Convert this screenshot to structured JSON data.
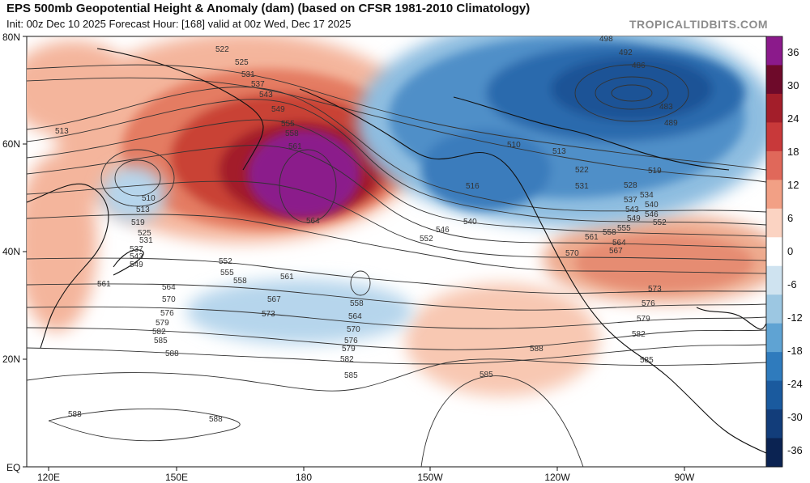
{
  "header": {
    "title": "EPS 500mb Geopotential Height & Anomaly (dam) (based on CFSR 1981-2010 Climatology)",
    "subtitle": "Init: 00z Dec 10 2025   Forecast Hour: [168]   valid at 00z Wed, Dec 17 2025",
    "brand": "TROPICALTIDBITS.COM"
  },
  "axes": {
    "lat_labels": [
      "80N",
      "60N",
      "40N",
      "20N",
      "EQ"
    ],
    "lon_labels": [
      "120E",
      "150E",
      "180",
      "150W",
      "120W",
      "90W"
    ]
  },
  "colorbar": {
    "ticks": [
      "36",
      "30",
      "24",
      "18",
      "12",
      "6",
      "0",
      "-6",
      "-12",
      "-18",
      "-24",
      "-30",
      "-36"
    ],
    "colors": [
      "#8b1a8b",
      "#6e0a2a",
      "#a31e2a",
      "#c8393a",
      "#e0685a",
      "#f2a085",
      "#fbd3c2",
      "#ffffff",
      "#cfe3f0",
      "#9cc7e2",
      "#5fa3d3",
      "#2f7bbd",
      "#1a5a9e",
      "#123d7a",
      "#0b2352"
    ]
  },
  "contour_labels": [
    {
      "value": "522"
    },
    {
      "value": "525"
    },
    {
      "value": "531"
    },
    {
      "value": "537"
    },
    {
      "value": "543"
    },
    {
      "value": "549"
    },
    {
      "value": "555"
    },
    {
      "value": "558"
    },
    {
      "value": "561"
    },
    {
      "value": "564"
    },
    {
      "value": "513"
    },
    {
      "value": "510"
    },
    {
      "value": "519"
    },
    {
      "value": "552"
    },
    {
      "value": "567"
    },
    {
      "value": "570"
    },
    {
      "value": "573"
    },
    {
      "value": "576"
    },
    {
      "value": "579"
    },
    {
      "value": "582"
    },
    {
      "value": "585"
    },
    {
      "value": "588"
    },
    {
      "value": "546"
    },
    {
      "value": "540"
    },
    {
      "value": "516"
    },
    {
      "value": "498"
    },
    {
      "value": "492"
    },
    {
      "value": "486"
    },
    {
      "value": "483"
    },
    {
      "value": "489"
    },
    {
      "value": "528"
    },
    {
      "value": "534"
    }
  ],
  "anomaly_colors": {
    "deep_pos": "#8b1a8b",
    "strong_pos": "#a31e2a",
    "pos": "#d6503f",
    "mod_pos": "#eb8a6c",
    "light_pos": "#f7c2ac",
    "faint_pos": "#fbe0d3",
    "light_neg": "#c7def0",
    "neg": "#92c0e0",
    "mod_neg": "#5a9bcf",
    "strong_neg": "#2d70b3",
    "deep_neg": "#1a4f92"
  }
}
